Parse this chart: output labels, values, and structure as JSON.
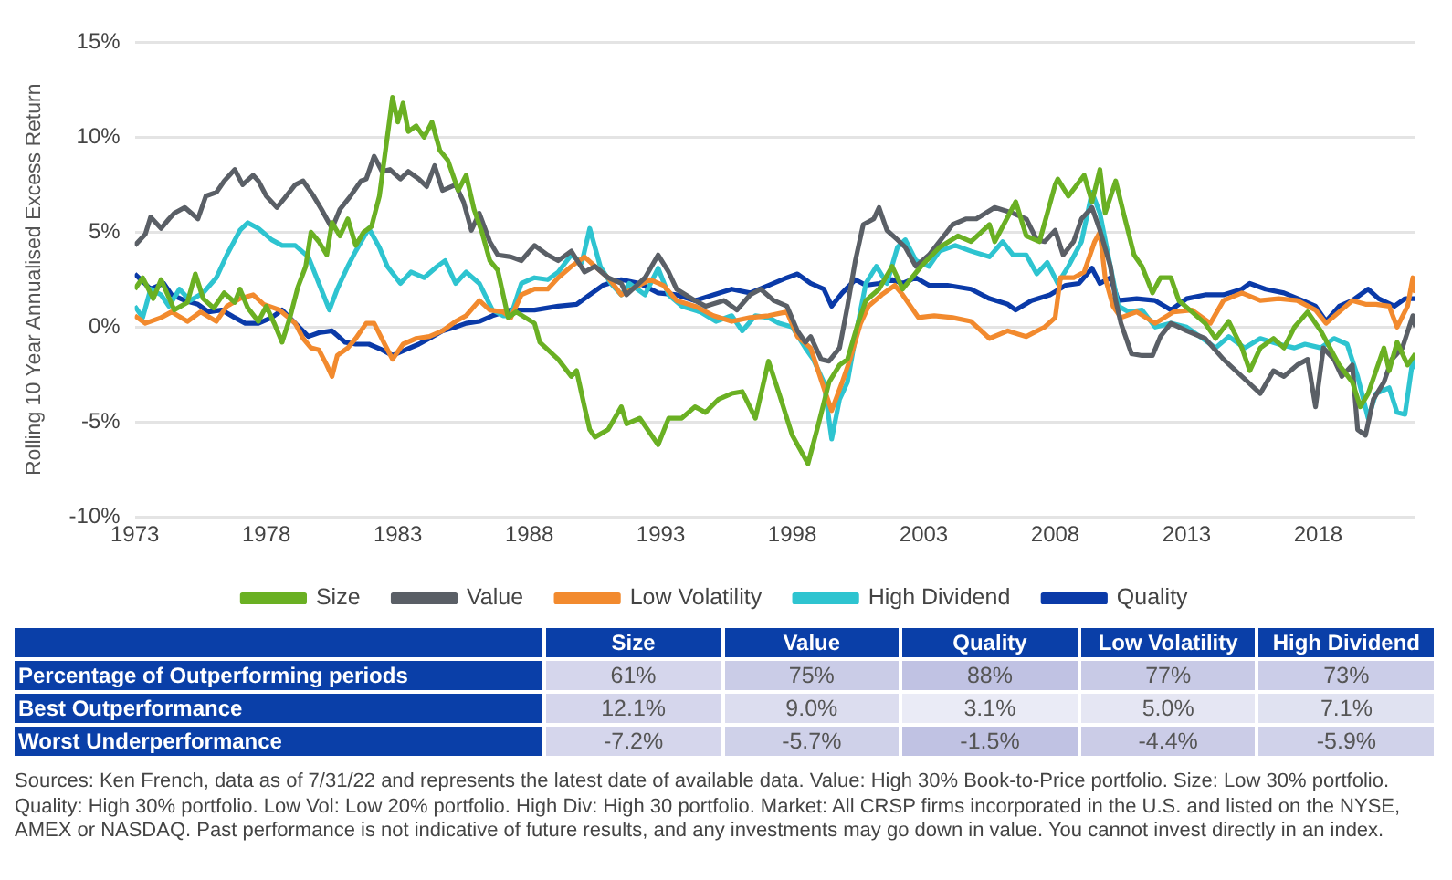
{
  "chart_data": [
    {
      "type": "line",
      "ylabel": "Rolling 10 Year Annualised Excess Return",
      "xlim": [
        1973,
        2021.7
      ],
      "xticks": [
        1973,
        1978,
        1983,
        1988,
        1993,
        1998,
        2003,
        2008,
        2013,
        2018
      ],
      "ylim": [
        -10,
        15
      ],
      "yticks": [
        {
          "value": -10,
          "label": "-10%"
        },
        {
          "value": -5,
          "label": "-5%"
        },
        {
          "value": 0,
          "label": "0%"
        },
        {
          "value": 5,
          "label": "5%"
        },
        {
          "value": 10,
          "label": "10%"
        },
        {
          "value": 15,
          "label": "15%"
        }
      ],
      "grid": "y",
      "legend": "bottom",
      "series": [
        {
          "name": "Size",
          "color": "#6ab023",
          "x": [
            1973.0,
            1973.3,
            1973.7,
            1974.0,
            1974.5,
            1975.0,
            1975.3,
            1975.6,
            1976.0,
            1976.4,
            1976.8,
            1977.0,
            1977.3,
            1977.7,
            1978.0,
            1978.3,
            1978.6,
            1978.9,
            1979.2,
            1979.5,
            1979.7,
            1980.0,
            1980.3,
            1980.5,
            1980.8,
            1981.1,
            1981.4,
            1981.7,
            1982.0,
            1982.3,
            1982.6,
            1982.8,
            1983.0,
            1983.2,
            1983.4,
            1983.7,
            1984.0,
            1984.3,
            1984.6,
            1984.9,
            1985.3,
            1985.6,
            1985.9,
            1986.2,
            1986.5,
            1986.8,
            1987.2,
            1987.5,
            1988.2,
            1988.4,
            1989.1,
            1989.6,
            1989.8,
            1990.1,
            1990.3,
            1990.5,
            1991.0,
            1991.5,
            1991.7,
            1992.2,
            1992.9,
            1993.3,
            1993.8,
            1994.3,
            1994.7,
            1995.2,
            1995.7,
            1996.1,
            1996.6,
            1997.1,
            1997.5,
            1998.0,
            1998.6,
            1999.0,
            1999.4,
            1999.8,
            2000.1,
            2000.5,
            2000.8,
            2001.3,
            2001.8,
            2002.2,
            2002.9,
            2003.6,
            2004.3,
            2004.8,
            2005.5,
            2005.7,
            2006.5,
            2006.9,
            2007.4,
            2008.0,
            2008.1,
            2008.5,
            2009.1,
            2009.4,
            2009.7,
            2009.9,
            2010.3,
            2010.6,
            2011.0,
            2011.3,
            2011.7,
            2012.0,
            2012.4,
            2012.7,
            2013.2,
            2013.7,
            2014.1,
            2014.6,
            2015.1,
            2015.4,
            2015.8,
            2016.3,
            2016.7,
            2017.1,
            2017.6,
            2018.1,
            2018.8,
            2019.3,
            2019.6,
            2019.9,
            2020.5,
            2020.7,
            2021.0,
            2021.4,
            2021.7
          ],
          "values": [
            2.0,
            2.6,
            1.5,
            2.5,
            0.9,
            1.3,
            2.8,
            1.5,
            1.0,
            1.8,
            1.3,
            2.0,
            1.0,
            0.3,
            1.1,
            0.2,
            -0.8,
            0.5,
            2.1,
            3.2,
            5.0,
            4.5,
            3.8,
            5.5,
            4.8,
            5.7,
            4.3,
            5.0,
            5.3,
            6.9,
            10.0,
            12.1,
            10.8,
            11.8,
            10.3,
            10.6,
            10.0,
            10.8,
            9.3,
            8.8,
            7.2,
            8.0,
            6.2,
            5.0,
            3.5,
            3.0,
            0.5,
            0.8,
            0.2,
            -0.8,
            -1.7,
            -2.6,
            -2.3,
            -4.2,
            -5.4,
            -5.8,
            -5.4,
            -4.2,
            -5.1,
            -4.8,
            -6.2,
            -4.8,
            -4.8,
            -4.2,
            -4.5,
            -3.8,
            -3.5,
            -3.4,
            -4.8,
            -1.8,
            -3.5,
            -5.7,
            -7.2,
            -5.1,
            -2.9,
            -2.0,
            -1.7,
            0.2,
            1.4,
            2.0,
            3.2,
            2.0,
            3.2,
            4.2,
            4.8,
            4.5,
            5.4,
            4.5,
            6.6,
            4.8,
            4.5,
            7.5,
            7.8,
            6.9,
            8.0,
            6.6,
            8.3,
            6.0,
            7.7,
            6.0,
            3.8,
            3.2,
            1.8,
            2.6,
            2.6,
            1.4,
            0.8,
            0.2,
            -0.6,
            0.3,
            -1.1,
            -2.3,
            -1.1,
            -0.6,
            -1.1,
            0.0,
            0.8,
            -0.2,
            -2.0,
            -2.9,
            -4.2,
            -3.5,
            -1.1,
            -2.3,
            -0.8,
            -2.0,
            -1.4
          ]
        },
        {
          "name": "Value",
          "color": "#5a5f66",
          "x": [
            1973.0,
            1973.4,
            1973.6,
            1974.0,
            1974.3,
            1974.5,
            1974.9,
            1975.4,
            1975.7,
            1976.1,
            1976.4,
            1976.8,
            1977.1,
            1977.5,
            1977.7,
            1978.0,
            1978.4,
            1978.7,
            1979.1,
            1979.4,
            1979.8,
            1980.1,
            1980.5,
            1980.8,
            1981.2,
            1981.6,
            1981.8,
            1982.1,
            1982.4,
            1982.7,
            1983.1,
            1983.4,
            1983.8,
            1984.1,
            1984.4,
            1984.7,
            1985.2,
            1985.5,
            1985.8,
            1986.1,
            1986.5,
            1986.8,
            1987.3,
            1987.7,
            1988.2,
            1988.7,
            1989.1,
            1989.6,
            1990.1,
            1990.5,
            1991.0,
            1991.5,
            1991.7,
            1992.4,
            1992.9,
            1993.3,
            1993.6,
            1994.3,
            1994.7,
            1995.4,
            1995.9,
            1996.4,
            1996.8,
            1997.3,
            1997.8,
            1998.2,
            1998.5,
            1998.7,
            1999.1,
            1999.4,
            1999.8,
            2000.1,
            2000.4,
            2000.7,
            2001.1,
            2001.3,
            2001.6,
            2002.0,
            2002.3,
            2002.7,
            2003.2,
            2003.6,
            2004.1,
            2004.6,
            2005.0,
            2005.7,
            2006.4,
            2006.9,
            2007.3,
            2007.6,
            2008.0,
            2008.3,
            2008.7,
            2009.0,
            2009.4,
            2009.7,
            2010.1,
            2010.3,
            2010.5,
            2010.9,
            2011.3,
            2011.7,
            2012.0,
            2012.4,
            2013.0,
            2013.7,
            2014.4,
            2015.1,
            2015.8,
            2016.3,
            2016.7,
            2017.2,
            2017.6,
            2017.9,
            2018.2,
            2018.6,
            2018.9,
            2019.3,
            2019.5,
            2019.8,
            2020.1,
            2020.5,
            2020.8,
            2021.2,
            2021.6,
            2021.7
          ],
          "values": [
            4.3,
            4.9,
            5.8,
            5.2,
            5.7,
            6.0,
            6.3,
            5.7,
            6.9,
            7.1,
            7.7,
            8.3,
            7.5,
            8.0,
            7.7,
            6.9,
            6.3,
            6.8,
            7.5,
            7.7,
            6.9,
            6.2,
            5.2,
            6.2,
            6.9,
            7.7,
            7.8,
            9.0,
            8.2,
            8.3,
            7.8,
            8.2,
            7.8,
            7.4,
            8.5,
            7.2,
            7.5,
            6.6,
            5.1,
            6.0,
            4.5,
            3.8,
            3.7,
            3.5,
            4.3,
            3.8,
            3.5,
            4.0,
            2.9,
            3.2,
            2.6,
            2.3,
            1.7,
            2.6,
            3.8,
            2.9,
            2.0,
            1.4,
            1.1,
            1.4,
            0.9,
            1.7,
            2.0,
            1.4,
            1.1,
            -0.2,
            -0.8,
            -0.5,
            -1.7,
            -1.8,
            -1.1,
            1.1,
            3.5,
            5.4,
            5.7,
            6.3,
            5.1,
            4.6,
            4.2,
            3.2,
            3.8,
            4.5,
            5.4,
            5.7,
            5.7,
            6.3,
            6.0,
            5.7,
            4.6,
            4.5,
            5.1,
            3.8,
            4.5,
            5.7,
            6.3,
            5.1,
            3.2,
            1.4,
            0.2,
            -1.4,
            -1.5,
            -1.5,
            -0.5,
            0.2,
            -0.2,
            -0.6,
            -1.7,
            -2.6,
            -3.5,
            -2.3,
            -2.6,
            -2.0,
            -1.7,
            -4.2,
            -1.1,
            -1.7,
            -2.6,
            -2.0,
            -5.4,
            -5.7,
            -3.8,
            -2.9,
            -1.7,
            -1.1,
            0.6,
            0.0
          ]
        },
        {
          "name": "Low Volatility",
          "color": "#f28a2e",
          "x": [
            1973.0,
            1973.4,
            1974.0,
            1974.4,
            1975.0,
            1975.5,
            1976.1,
            1976.5,
            1977.0,
            1977.5,
            1977.9,
            1978.5,
            1979.1,
            1979.4,
            1979.7,
            1980.0,
            1980.3,
            1980.5,
            1980.7,
            1981.1,
            1981.4,
            1981.8,
            1982.1,
            1982.5,
            1982.8,
            1983.2,
            1983.7,
            1984.2,
            1984.7,
            1985.2,
            1985.6,
            1986.1,
            1986.5,
            1987.0,
            1987.3,
            1987.7,
            1988.2,
            1988.7,
            1989.1,
            1989.6,
            1990.1,
            1990.5,
            1991.0,
            1991.5,
            1991.9,
            1992.6,
            1993.1,
            1993.6,
            1994.3,
            1995.0,
            1995.7,
            1996.4,
            1997.1,
            1997.8,
            1998.2,
            1998.7,
            1999.2,
            1999.5,
            1999.9,
            2000.2,
            2000.6,
            2000.9,
            2001.4,
            2001.9,
            2002.2,
            2002.8,
            2003.4,
            2004.1,
            2004.8,
            2005.5,
            2006.2,
            2006.9,
            2007.6,
            2008.0,
            2008.2,
            2008.7,
            2009.1,
            2009.5,
            2009.7,
            2009.9,
            2010.2,
            2010.5,
            2011.1,
            2011.8,
            2012.5,
            2013.2,
            2013.9,
            2014.4,
            2015.1,
            2015.8,
            2016.5,
            2017.2,
            2017.9,
            2018.3,
            2018.8,
            2019.3,
            2019.8,
            2020.2,
            2020.7,
            2021.0,
            2021.4,
            2021.6,
            2021.7
          ],
          "values": [
            0.6,
            0.2,
            0.5,
            0.8,
            0.3,
            0.8,
            0.3,
            1.1,
            1.5,
            1.7,
            1.2,
            0.9,
            0.2,
            -0.6,
            -1.1,
            -1.2,
            -2.0,
            -2.6,
            -1.5,
            -1.1,
            -0.6,
            0.2,
            0.2,
            -0.9,
            -1.7,
            -0.9,
            -0.6,
            -0.5,
            -0.2,
            0.3,
            0.6,
            1.4,
            0.9,
            0.8,
            0.5,
            1.7,
            2.0,
            2.0,
            2.6,
            3.2,
            3.7,
            3.2,
            2.6,
            1.7,
            2.0,
            2.5,
            2.2,
            1.4,
            1.1,
            0.6,
            0.3,
            0.5,
            0.6,
            0.8,
            -0.5,
            -1.1,
            -3.2,
            -4.4,
            -2.9,
            -1.7,
            0.2,
            1.1,
            1.7,
            2.2,
            1.7,
            0.5,
            0.6,
            0.5,
            0.3,
            -0.6,
            -0.2,
            -0.5,
            0.0,
            0.5,
            2.6,
            2.6,
            2.9,
            4.5,
            5.0,
            2.6,
            1.1,
            0.5,
            0.8,
            0.2,
            0.8,
            0.9,
            0.2,
            1.4,
            1.8,
            1.4,
            1.5,
            1.4,
            0.9,
            0.2,
            0.8,
            1.4,
            1.2,
            1.2,
            1.1,
            0.0,
            1.1,
            2.6,
            1.8
          ]
        },
        {
          "name": "High Dividend",
          "color": "#2ec4d0",
          "x": [
            1973.0,
            1973.3,
            1973.6,
            1974.0,
            1974.3,
            1974.7,
            1975.1,
            1975.6,
            1976.1,
            1976.5,
            1977.0,
            1977.3,
            1977.7,
            1978.2,
            1978.6,
            1979.1,
            1979.6,
            1980.0,
            1980.4,
            1980.7,
            1981.1,
            1981.4,
            1981.9,
            1982.3,
            1982.6,
            1983.1,
            1983.5,
            1984.0,
            1984.5,
            1984.8,
            1985.2,
            1985.6,
            1986.1,
            1986.6,
            1987.0,
            1987.3,
            1987.7,
            1988.2,
            1988.7,
            1989.1,
            1989.6,
            1990.0,
            1990.3,
            1990.7,
            1991.1,
            1991.5,
            1991.8,
            1992.4,
            1992.9,
            1993.3,
            1993.8,
            1994.5,
            1995.1,
            1995.7,
            1996.1,
            1996.6,
            1997.1,
            1997.5,
            1998.0,
            1998.5,
            1998.8,
            1999.2,
            1999.5,
            1999.8,
            2000.1,
            2000.5,
            2000.8,
            2001.2,
            2001.6,
            2002.0,
            2002.3,
            2002.7,
            2003.2,
            2003.6,
            2004.2,
            2004.8,
            2005.5,
            2006.0,
            2006.4,
            2006.9,
            2007.3,
            2007.7,
            2008.1,
            2008.5,
            2009.0,
            2009.4,
            2009.7,
            2010.1,
            2010.4,
            2010.8,
            2011.3,
            2011.8,
            2012.4,
            2013.0,
            2013.6,
            2014.1,
            2014.6,
            2015.2,
            2015.8,
            2016.5,
            2017.1,
            2017.5,
            2018.1,
            2018.6,
            2019.1,
            2019.5,
            2019.9,
            2020.2,
            2020.7,
            2021.0,
            2021.3,
            2021.6,
            2021.7
          ],
          "values": [
            1.1,
            0.5,
            2.0,
            1.7,
            1.1,
            2.0,
            1.4,
            1.8,
            2.6,
            3.8,
            5.1,
            5.5,
            5.2,
            4.6,
            4.3,
            4.3,
            3.7,
            2.3,
            0.9,
            2.0,
            3.2,
            4.0,
            5.2,
            4.2,
            3.2,
            2.3,
            2.9,
            2.6,
            3.2,
            3.5,
            2.3,
            2.9,
            2.3,
            0.9,
            0.6,
            0.6,
            2.3,
            2.6,
            2.5,
            2.9,
            3.8,
            3.4,
            5.2,
            3.2,
            2.3,
            1.7,
            2.3,
            1.7,
            3.1,
            1.7,
            1.1,
            0.8,
            0.3,
            0.6,
            -0.2,
            0.6,
            0.5,
            0.2,
            0.0,
            -1.1,
            -1.7,
            -2.9,
            -5.9,
            -3.8,
            -2.9,
            0.2,
            2.3,
            3.2,
            2.3,
            4.2,
            4.6,
            3.5,
            3.2,
            4.0,
            4.3,
            4.0,
            3.7,
            4.5,
            3.8,
            3.8,
            2.8,
            3.4,
            2.3,
            3.2,
            4.5,
            7.1,
            6.0,
            3.2,
            1.1,
            0.8,
            0.9,
            0.0,
            0.2,
            0.0,
            -0.6,
            -1.1,
            -0.5,
            -1.1,
            -0.6,
            -0.9,
            -1.1,
            -0.9,
            -1.1,
            -0.6,
            -0.9,
            -2.6,
            -4.8,
            -3.5,
            -3.2,
            -4.5,
            -4.6,
            -1.7,
            -2.2
          ]
        },
        {
          "name": "Quality",
          "color": "#0a3aa8",
          "x": [
            1973.0,
            1973.6,
            1974.1,
            1974.4,
            1974.9,
            1975.4,
            1975.8,
            1976.3,
            1976.8,
            1977.2,
            1977.7,
            1978.2,
            1978.6,
            1979.1,
            1979.6,
            1980.0,
            1980.5,
            1981.0,
            1981.4,
            1981.9,
            1982.4,
            1982.8,
            1983.3,
            1983.8,
            1984.2,
            1984.7,
            1985.2,
            1985.6,
            1986.1,
            1986.6,
            1987.3,
            1988.2,
            1989.1,
            1989.8,
            1990.3,
            1990.8,
            1991.5,
            1992.2,
            1992.9,
            1993.6,
            1994.3,
            1995.0,
            1995.7,
            1996.4,
            1997.1,
            1997.8,
            1998.2,
            1998.7,
            1999.2,
            1999.5,
            1999.9,
            2000.4,
            2000.8,
            2001.3,
            2001.8,
            2002.2,
            2002.7,
            2003.2,
            2003.9,
            2004.8,
            2005.5,
            2006.2,
            2006.5,
            2007.1,
            2007.8,
            2008.4,
            2008.9,
            2009.4,
            2009.7,
            2010.1,
            2010.4,
            2011.1,
            2011.8,
            2012.4,
            2013.0,
            2013.7,
            2014.4,
            2015.1,
            2015.4,
            2016.0,
            2016.7,
            2017.4,
            2017.9,
            2018.3,
            2018.8,
            2019.3,
            2019.9,
            2020.3,
            2020.9,
            2021.3,
            2021.7
          ],
          "values": [
            2.8,
            2.0,
            2.3,
            1.7,
            1.4,
            1.2,
            0.8,
            0.9,
            0.5,
            0.2,
            0.2,
            0.5,
            0.9,
            0.2,
            -0.5,
            -0.3,
            -0.2,
            -0.8,
            -0.9,
            -0.9,
            -1.2,
            -1.5,
            -1.2,
            -0.9,
            -0.6,
            -0.2,
            0.0,
            0.2,
            0.3,
            0.6,
            0.9,
            0.9,
            1.1,
            1.2,
            1.7,
            2.2,
            2.5,
            2.3,
            1.8,
            1.7,
            1.4,
            1.7,
            2.0,
            1.8,
            2.2,
            2.6,
            2.8,
            2.3,
            2.0,
            1.1,
            1.8,
            2.5,
            2.2,
            2.3,
            2.5,
            2.3,
            2.6,
            2.2,
            2.2,
            2.0,
            1.5,
            1.2,
            0.9,
            1.4,
            1.7,
            2.2,
            2.3,
            3.1,
            2.3,
            2.6,
            1.4,
            1.5,
            1.4,
            0.9,
            1.5,
            1.7,
            1.7,
            2.0,
            2.3,
            2.0,
            1.8,
            1.4,
            1.1,
            0.3,
            1.1,
            1.4,
            2.0,
            1.5,
            1.1,
            1.5,
            1.5
          ]
        }
      ]
    },
    {
      "type": "heatmap",
      "categories": [
        "Size",
        "Value",
        "Quality",
        "Low Volatility",
        "High Dividend"
      ],
      "y_categories": [
        "Percentage of Outperforming periods",
        "Best Outperformance",
        "Worst Underperformance"
      ],
      "cells": [
        [
          61,
          75,
          88,
          77,
          73
        ],
        [
          12.1,
          9.0,
          3.1,
          5.0,
          7.1
        ],
        [
          -7.2,
          -5.7,
          -1.5,
          -4.4,
          -5.9
        ]
      ],
      "cell_labels": [
        [
          "61%",
          "75%",
          "88%",
          "77%",
          "73%"
        ],
        [
          "12.1%",
          "9.0%",
          "3.1%",
          "5.0%",
          "7.1%"
        ],
        [
          "-7.2%",
          "-5.7%",
          "-1.5%",
          "-4.4%",
          "-5.9%"
        ]
      ],
      "annotations": [
        "Sources: Ken French, data as of 7/31/22 and represents the latest date of available data. Value: High 30% Book-to-Price portfolio. Size: Low 30% portfolio. Quality: High 30% portfolio. Low Vol: Low 20% portfolio. High Div: High 30 portfolio. Market: All CRSP firms incorporated in the U.S. and listed on the NYSE, AMEX or NASDAQ. Past performance is not indicative of future results, and any investments may go down in value. You cannot invest directly in an index."
      ]
    }
  ]
}
